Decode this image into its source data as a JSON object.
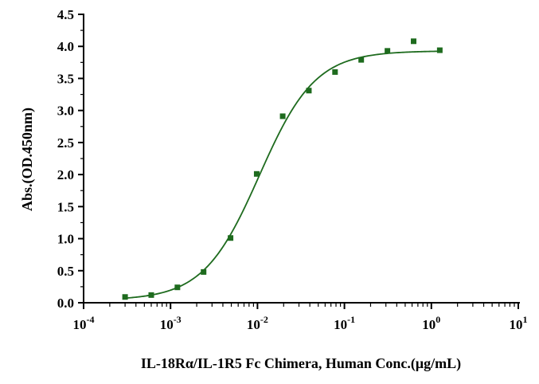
{
  "chart_data": {
    "type": "scatter",
    "title": "",
    "xlabel": "IL-18Rα/IL-1R5 Fc Chimera, Human Conc.(μg/mL)",
    "ylabel": "Abs.(OD.450nm)",
    "x_scale": "log",
    "xlim": [
      0.0001,
      10
    ],
    "ylim": [
      0,
      4.5
    ],
    "x_ticks": [
      {
        "value": 0.0001,
        "base": "10",
        "exp": "-4"
      },
      {
        "value": 0.001,
        "base": "10",
        "exp": "-3"
      },
      {
        "value": 0.01,
        "base": "10",
        "exp": "-2"
      },
      {
        "value": 0.1,
        "base": "10",
        "exp": "-1"
      },
      {
        "value": 1,
        "base": "10",
        "exp": "0"
      },
      {
        "value": 10,
        "base": "10",
        "exp": "1"
      }
    ],
    "y_ticks": [
      "0.0",
      "0.5",
      "1.0",
      "1.5",
      "2.0",
      "2.5",
      "3.0",
      "3.5",
      "4.0",
      "4.5"
    ],
    "grid": false,
    "legend": "none",
    "color": "#1e6b1e",
    "series": [
      {
        "x": [
          0.0003,
          0.0006,
          0.0012,
          0.0024,
          0.0049,
          0.0098,
          0.0195,
          0.039,
          0.078,
          0.156,
          0.3125,
          0.625,
          1.25
        ],
        "y": [
          0.09,
          0.12,
          0.24,
          0.48,
          1.01,
          2.01,
          2.91,
          3.31,
          3.6,
          3.79,
          3.93,
          4.08,
          3.94
        ]
      }
    ],
    "fit": {
      "type": "4PL",
      "bottom": 0.04,
      "top": 3.93,
      "ec50": 0.0105,
      "hill": 1.35
    }
  }
}
